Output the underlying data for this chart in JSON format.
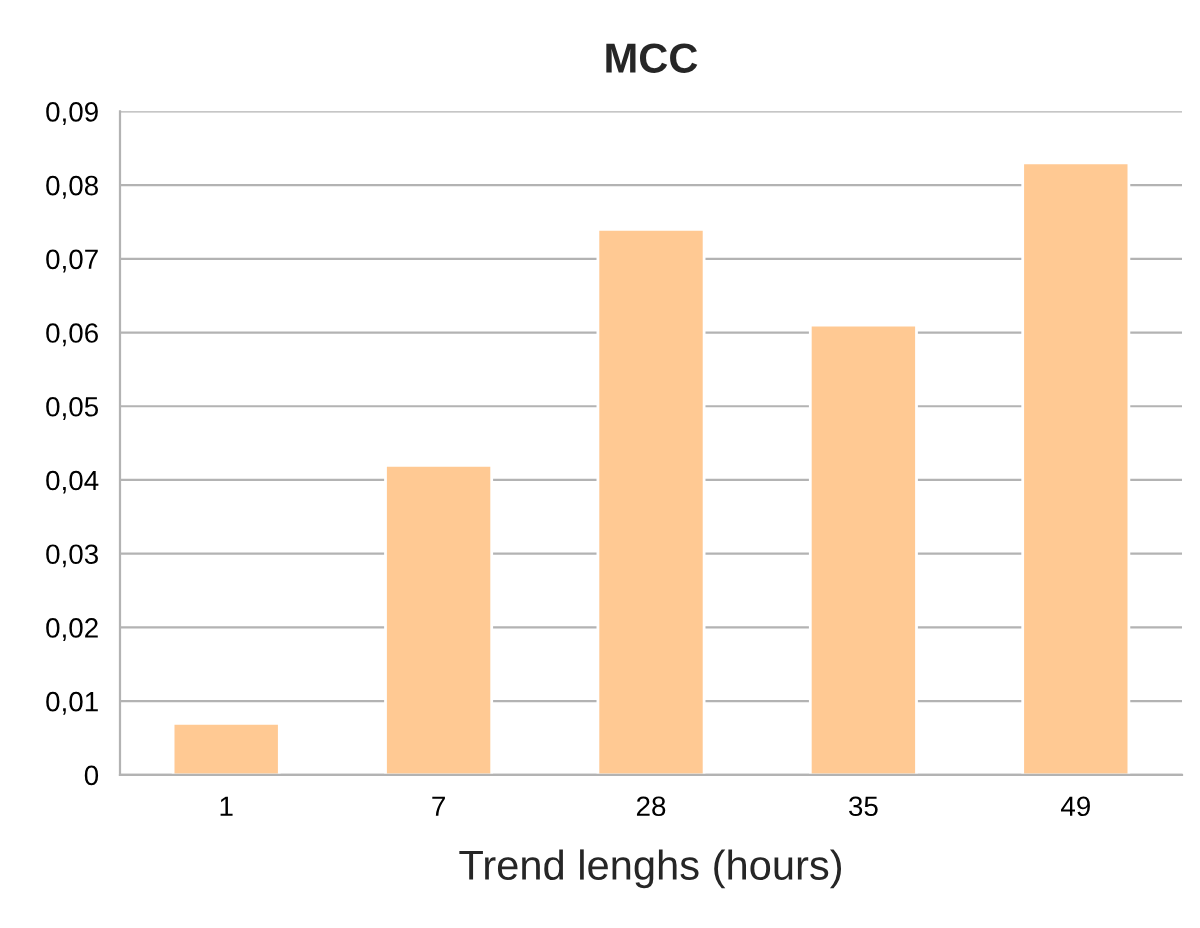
{
  "chart_data": {
    "type": "bar",
    "title": "MCC",
    "xlabel": "Trend lenghs (hours)",
    "categories": [
      "1",
      "7",
      "28",
      "35",
      "49"
    ],
    "values": [
      0.007,
      0.042,
      0.074,
      0.061,
      0.083
    ],
    "color": "#ffc993",
    "ylim": [
      0,
      0.09
    ],
    "yticks": [
      {
        "value": 0,
        "label": "0"
      },
      {
        "value": 0.01,
        "label": "0,01"
      },
      {
        "value": 0.02,
        "label": "0,02"
      },
      {
        "value": 0.03,
        "label": "0,03"
      },
      {
        "value": 0.04,
        "label": "0,04"
      },
      {
        "value": 0.05,
        "label": "0,05"
      },
      {
        "value": 0.06,
        "label": "0,06"
      },
      {
        "value": 0.07,
        "label": "0,07"
      },
      {
        "value": 0.08,
        "label": "0,08"
      },
      {
        "value": 0.09,
        "label": "0,09"
      }
    ],
    "grid": "y"
  }
}
